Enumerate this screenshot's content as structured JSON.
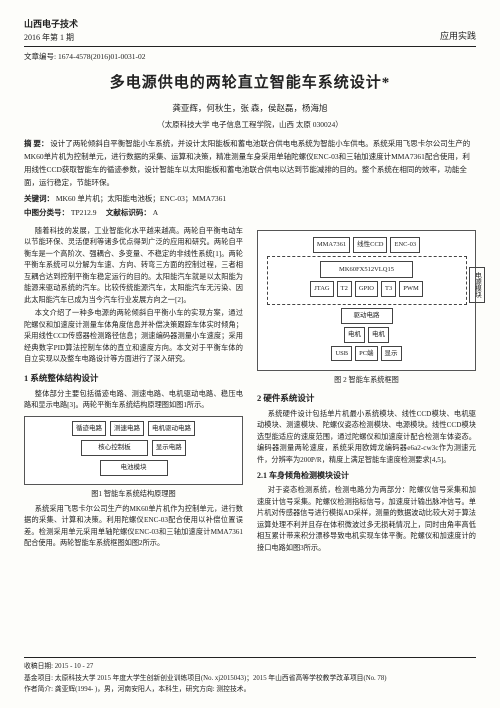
{
  "header": {
    "journal": "山西电子技术",
    "issue": "2016 年第 1 期",
    "section": "应用实践"
  },
  "article_id": "文章编号: 1674-4578(2016)01-0031-02",
  "title": "多电源供电的两轮直立智能车系统设计*",
  "authors": "龚亚辉，何秋生，张 森，侯赵磊，杨海旭",
  "affiliation": "（太原科技大学 电子信息工程学院，山西 太原 030024）",
  "abstract": {
    "label": "摘 要：",
    "text": "设计了两轮倾斜自平衡智能小车系统，并设计太阳能板和蓄电池联合供电电系统为智能小车供电。系统采用飞思卡尔公司生产的MK60单片机为控制单元，进行数据的采集、运算和决策，精准测量车身采用单轴陀螺仪ENC-03和三轴加速度计MMA7361配合使用，利用线性CCD获取智能车的循迹参数，设计智能车以太阳能板和蓄电池联合供电以达到节能减排的目的。整个系统在相同的效率，功能全面，运行稳定，节能环保。"
  },
  "keywords": {
    "label": "关键词：",
    "text": "MK60 单片机；太阳能电池板；ENC-03；MMA7361"
  },
  "clc": {
    "label": "中图分类号：",
    "value": "TP212.9",
    "doc_label": "文献标识码：",
    "doc_value": "A"
  },
  "left_paras": [
    "随着科技的发展，工业智能化水平越来越高。两轮自平衡电动车以节能环保、灵活便利等诸多优点得到广泛的应用和研究。两轮自平衡车是一个高阶次、强耦合、多变量、不稳定的非线性系统[1]。两轮平衡车系统可以分解为车速、方向、转弯三方面的控制过程，三者相互耦合达到控制平衡车稳定运行的目的。太阳能汽车就是以太阳能为能源来驱动系统的汽车。比较传统能源汽车，太阳能汽车无污染、因此太阳能汽车已成为当今汽车行业发展方向之一[2]。",
    "本文介绍了一种多电源的两轮倾斜自平衡小车的实现方案，通过陀螺仪和加速度计测量车体角度信息并补偿决策跟踪车体实时倾角；采用线性CCD传感器检测路径信息；测速编码器测量小车速度；采用经典数字PID算法控制车体的直立和速度方向。本文对于平衡车体的自立实现以及整车电路设计等方面进行了深入研究。"
  ],
  "sec1": {
    "title": "1 系统整体结构设计",
    "para": "整体部分主要包括循迹电路、测速电路、电机驱动电路、稳压电路和显示电路[3]。两轮平衡车系统结构原理图如图1所示。",
    "fig_boxes": {
      "r1": [
        "循迹电路",
        "测速电路",
        "电机驱动电路"
      ],
      "r2": [
        "核心控制板",
        "显示电路"
      ],
      "r3": [
        "电池模块"
      ]
    },
    "fig_caption": "图1 智能车系统结构原理图",
    "para2": "系统采用飞思卡尔公司生产的MK60单片机作为控制单元，进行数据的采集、计算和决策。利用陀螺仪ENC-03配合使用以补偿位置误差。检测采用单元采用单轴陀螺仪ENC-03和三轴加速度计MMA7361配合使用。两轮智能车系统框图如图2所示。"
  },
  "fig2": {
    "row1": [
      "MMA7361",
      "线性CCD",
      "ENC-03"
    ],
    "mcu": "MK60FX512VLQ15",
    "row3": [
      "JTAG",
      "T2",
      "GPIO",
      "T3",
      "PWM"
    ],
    "row4": [
      "驱动电路"
    ],
    "row5": [
      "电机",
      "电机"
    ],
    "row6": [
      "USB",
      "PC端",
      "显示"
    ],
    "side": "电源模块",
    "caption": "图 2 智能车系统框图"
  },
  "sec2": {
    "title": "2 硬件系统设计",
    "para": "系统硬件设计包括单片机最小系统模块、线性CCD模块、电机驱动模块、测速模块、陀螺仪姿态检测模块、电源模块。线性CCD模块选型能适应的速度范围，通过陀螺仪和加速度计配合检测车体姿态。编码器测量两轮速度，系统采用欧姆龙编码器e6a2-cw3c作为测速元件，分辨率为200P/R，精度上满足智能车速度检测要求[4,5]。"
  },
  "sec21": {
    "title": "2.1 车身倾角检测模块设计",
    "para1": "对于姿态检测系统，检测电路分为两部分：陀螺仪信号采集和加速度计信号采集。陀螺仪检测指标信号，加速度计输出脉冲信号。单片机对传感器信号进行模拟AD采样，测量的数据波动比较大对于算法运算处理不利并且存在体积微波过多无损耗情况上，同时由角率高低相互累计带来积分漂移导致电机实现车体平衡。陀螺仪和加速度计的接口电路如图3所示。"
  },
  "footer": {
    "date": "收稿日期: 2015 - 10 - 27",
    "fund": "基金项目: 太原科技大学 2015 年度大学生创新创业训练项目(No. xj2015043)；2015 年山西省高等学校教学改革项目(No. 78)",
    "author": "作者简介: 龚亚辉(1994- )，男，河南安阳人，本科生，研究方向: 测控技术。"
  },
  "colors": {
    "text": "#222222",
    "rule": "#222222",
    "page_bg": "#fdfdfa"
  }
}
